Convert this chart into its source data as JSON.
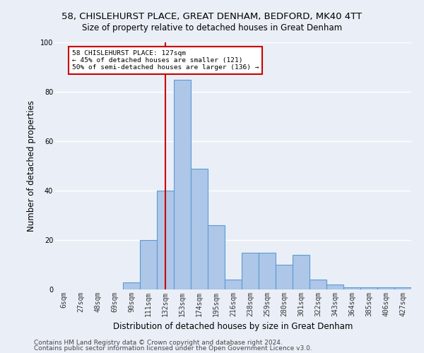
{
  "title": "58, CHISLEHURST PLACE, GREAT DENHAM, BEDFORD, MK40 4TT",
  "subtitle": "Size of property relative to detached houses in Great Denham",
  "xlabel": "Distribution of detached houses by size in Great Denham",
  "ylabel": "Number of detached properties",
  "footer1": "Contains HM Land Registry data © Crown copyright and database right 2024.",
  "footer2": "Contains public sector information licensed under the Open Government Licence v3.0.",
  "bin_labels": [
    "6sqm",
    "27sqm",
    "48sqm",
    "69sqm",
    "90sqm",
    "111sqm",
    "132sqm",
    "153sqm",
    "174sqm",
    "195sqm",
    "216sqm",
    "238sqm",
    "259sqm",
    "280sqm",
    "301sqm",
    "322sqm",
    "343sqm",
    "364sqm",
    "385sqm",
    "406sqm",
    "427sqm"
  ],
  "bar_heights": [
    0,
    0,
    0,
    0,
    3,
    20,
    40,
    85,
    49,
    26,
    4,
    15,
    15,
    10,
    14,
    4,
    2,
    1,
    1,
    1,
    1
  ],
  "bar_color": "#aec6e8",
  "bar_edge_color": "#5b9bd5",
  "vline_index": 6,
  "vline_color": "#cc0000",
  "annotation_text": "58 CHISLEHURST PLACE: 127sqm\n← 45% of detached houses are smaller (121)\n50% of semi-detached houses are larger (136) →",
  "annotation_box_color": "#ffffff",
  "annotation_box_edge_color": "#cc0000",
  "ylim": [
    0,
    100
  ],
  "bg_color": "#eaeff7",
  "plot_bg_color": "#eaeff7",
  "grid_color": "#ffffff",
  "title_fontsize": 9.5,
  "subtitle_fontsize": 8.5,
  "axis_label_fontsize": 8.5,
  "tick_fontsize": 7,
  "footer_fontsize": 6.5
}
